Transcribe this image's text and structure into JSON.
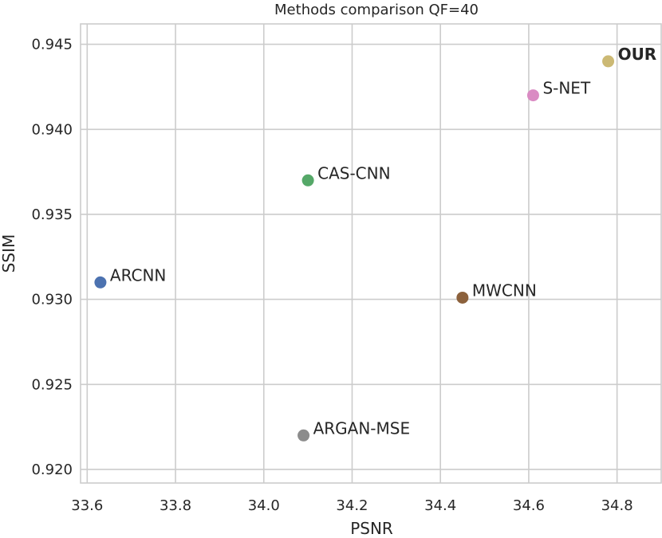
{
  "chart_data": {
    "type": "scatter",
    "title": "Methods comparison QF=40",
    "xlabel": "PSNR",
    "ylabel": "SSIM",
    "xlim": [
      33.585,
      34.9
    ],
    "ylim": [
      0.9192,
      0.9462
    ],
    "grid": true,
    "xticks": [
      33.6,
      33.8,
      34.0,
      34.2,
      34.4,
      34.6,
      34.8
    ],
    "xtick_labels": [
      "33.6",
      "33.8",
      "34.0",
      "34.2",
      "34.4",
      "34.6",
      "34.8"
    ],
    "yticks": [
      0.92,
      0.925,
      0.93,
      0.935,
      0.94,
      0.945
    ],
    "ytick_labels": [
      "0.920",
      "0.925",
      "0.930",
      "0.935",
      "0.940",
      "0.945"
    ],
    "points": [
      {
        "label": "ARCNN",
        "x": 33.63,
        "y": 0.931,
        "color": "#4C72B0",
        "bold": false
      },
      {
        "label": "CAS-CNN",
        "x": 34.1,
        "y": 0.937,
        "color": "#55A868",
        "bold": false
      },
      {
        "label": "ARGAN-MSE",
        "x": 34.09,
        "y": 0.922,
        "color": "#8C8C8C",
        "bold": false
      },
      {
        "label": "MWCNN",
        "x": 34.45,
        "y": 0.9301,
        "color": "#8C613C",
        "bold": false
      },
      {
        "label": "S-NET",
        "x": 34.61,
        "y": 0.942,
        "color": "#DA8BC3",
        "bold": false
      },
      {
        "label": "OUR",
        "x": 34.78,
        "y": 0.944,
        "color": "#CCB974",
        "bold": true
      }
    ]
  }
}
